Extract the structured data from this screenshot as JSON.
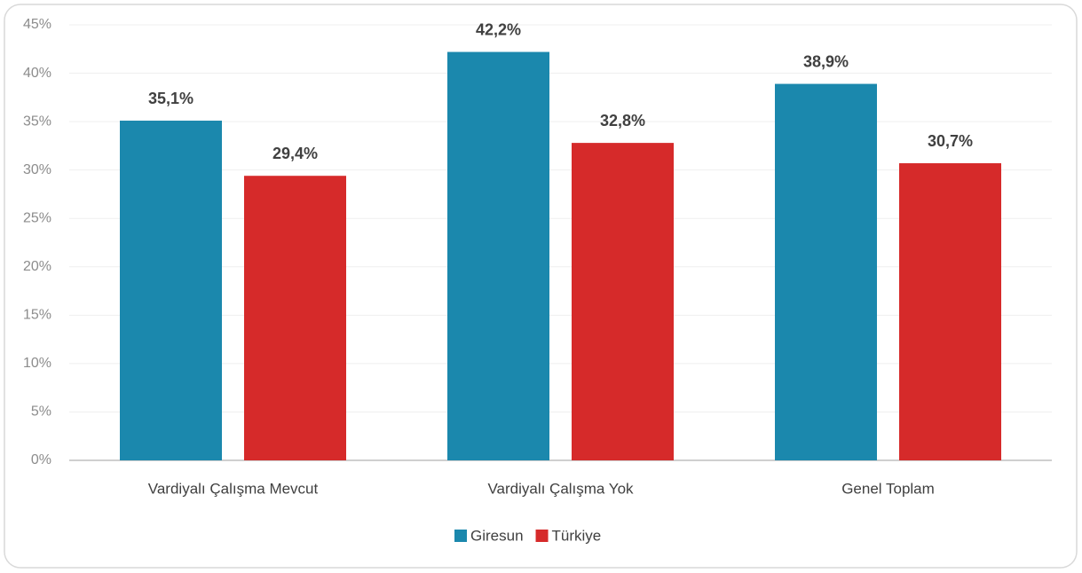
{
  "chart_data": {
    "type": "bar",
    "categories": [
      "Vardiyalı Çalışma Mevcut",
      "Vardiyalı Çalışma Yok",
      "Genel Toplam"
    ],
    "series": [
      {
        "name": "Giresun",
        "color": "#1b88ad",
        "values": [
          35.1,
          42.2,
          38.9
        ],
        "value_labels": [
          "35,1%",
          "42,2%",
          "38,9%"
        ]
      },
      {
        "name": "Türkiye",
        "color": "#d62a2a",
        "values": [
          29.4,
          32.8,
          30.7
        ],
        "value_labels": [
          "29,4%",
          "32,8%",
          "30,7%"
        ]
      }
    ],
    "ylim": [
      0,
      45
    ],
    "yticks": [
      {
        "value": 0,
        "label": "0%"
      },
      {
        "value": 5,
        "label": "5%"
      },
      {
        "value": 10,
        "label": "10%"
      },
      {
        "value": 15,
        "label": "15%"
      },
      {
        "value": 20,
        "label": "20%"
      },
      {
        "value": 25,
        "label": "25%"
      },
      {
        "value": 30,
        "label": "30%"
      },
      {
        "value": 35,
        "label": "35%"
      },
      {
        "value": 40,
        "label": "40%"
      },
      {
        "value": 45,
        "label": "45%"
      }
    ],
    "grid": true,
    "legend": "bottom"
  }
}
